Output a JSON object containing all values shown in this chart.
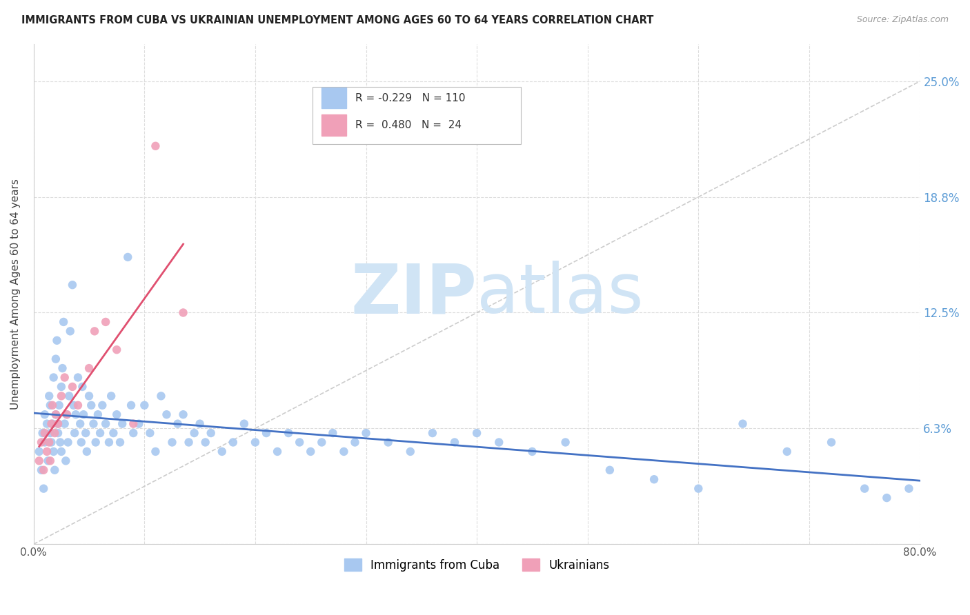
{
  "title": "IMMIGRANTS FROM CUBA VS UKRAINIAN UNEMPLOYMENT AMONG AGES 60 TO 64 YEARS CORRELATION CHART",
  "source": "Source: ZipAtlas.com",
  "ylabel": "Unemployment Among Ages 60 to 64 years",
  "xlim": [
    0.0,
    0.8
  ],
  "ylim": [
    0.0,
    0.27
  ],
  "yticks": [
    0.0,
    0.0625,
    0.125,
    0.1875,
    0.25
  ],
  "ytick_labels": [
    "",
    "6.3%",
    "12.5%",
    "18.8%",
    "25.0%"
  ],
  "xticks": [
    0.0,
    0.1,
    0.2,
    0.3,
    0.4,
    0.5,
    0.6,
    0.7,
    0.8
  ],
  "xtick_labels": [
    "0.0%",
    "",
    "",
    "",
    "",
    "",
    "",
    "",
    "80.0%"
  ],
  "color_blue": "#A8C8F0",
  "color_pink": "#F0A0B8",
  "color_blue_line": "#4472C4",
  "color_pink_line": "#E05070",
  "color_diag": "#CCCCCC",
  "color_grid": "#DDDDDD",
  "color_axis_right": "#5B9BD5",
  "watermark_color": "#D0E4F5",
  "blue_x": [
    0.005,
    0.007,
    0.008,
    0.009,
    0.01,
    0.01,
    0.012,
    0.013,
    0.014,
    0.015,
    0.015,
    0.016,
    0.017,
    0.018,
    0.018,
    0.019,
    0.02,
    0.02,
    0.021,
    0.022,
    0.022,
    0.023,
    0.024,
    0.025,
    0.025,
    0.026,
    0.027,
    0.028,
    0.029,
    0.03,
    0.031,
    0.032,
    0.033,
    0.035,
    0.036,
    0.037,
    0.038,
    0.04,
    0.042,
    0.043,
    0.044,
    0.045,
    0.047,
    0.048,
    0.05,
    0.052,
    0.054,
    0.056,
    0.058,
    0.06,
    0.062,
    0.065,
    0.068,
    0.07,
    0.072,
    0.075,
    0.078,
    0.08,
    0.085,
    0.088,
    0.09,
    0.095,
    0.1,
    0.105,
    0.11,
    0.115,
    0.12,
    0.125,
    0.13,
    0.135,
    0.14,
    0.145,
    0.15,
    0.155,
    0.16,
    0.17,
    0.18,
    0.19,
    0.2,
    0.21,
    0.22,
    0.23,
    0.24,
    0.25,
    0.26,
    0.27,
    0.28,
    0.29,
    0.3,
    0.32,
    0.34,
    0.36,
    0.38,
    0.4,
    0.42,
    0.45,
    0.48,
    0.52,
    0.56,
    0.6,
    0.64,
    0.68,
    0.72,
    0.75,
    0.77,
    0.79
  ],
  "blue_y": [
    0.05,
    0.04,
    0.06,
    0.03,
    0.055,
    0.07,
    0.065,
    0.045,
    0.08,
    0.06,
    0.075,
    0.055,
    0.065,
    0.09,
    0.05,
    0.04,
    0.07,
    0.1,
    0.11,
    0.06,
    0.065,
    0.075,
    0.055,
    0.085,
    0.05,
    0.095,
    0.12,
    0.065,
    0.045,
    0.07,
    0.055,
    0.08,
    0.115,
    0.14,
    0.075,
    0.06,
    0.07,
    0.09,
    0.065,
    0.055,
    0.085,
    0.07,
    0.06,
    0.05,
    0.08,
    0.075,
    0.065,
    0.055,
    0.07,
    0.06,
    0.075,
    0.065,
    0.055,
    0.08,
    0.06,
    0.07,
    0.055,
    0.065,
    0.155,
    0.075,
    0.06,
    0.065,
    0.075,
    0.06,
    0.05,
    0.08,
    0.07,
    0.055,
    0.065,
    0.07,
    0.055,
    0.06,
    0.065,
    0.055,
    0.06,
    0.05,
    0.055,
    0.065,
    0.055,
    0.06,
    0.05,
    0.06,
    0.055,
    0.05,
    0.055,
    0.06,
    0.05,
    0.055,
    0.06,
    0.055,
    0.05,
    0.06,
    0.055,
    0.06,
    0.055,
    0.05,
    0.055,
    0.04,
    0.035,
    0.03,
    0.065,
    0.05,
    0.055,
    0.03,
    0.025,
    0.03
  ],
  "pink_x": [
    0.005,
    0.007,
    0.009,
    0.01,
    0.012,
    0.014,
    0.015,
    0.016,
    0.017,
    0.019,
    0.02,
    0.022,
    0.025,
    0.028,
    0.03,
    0.035,
    0.04,
    0.05,
    0.055,
    0.065,
    0.075,
    0.09,
    0.11,
    0.135
  ],
  "pink_y": [
    0.045,
    0.055,
    0.04,
    0.06,
    0.05,
    0.055,
    0.045,
    0.065,
    0.075,
    0.06,
    0.07,
    0.065,
    0.08,
    0.09,
    0.07,
    0.085,
    0.075,
    0.095,
    0.115,
    0.12,
    0.105,
    0.065,
    0.215,
    0.125
  ]
}
